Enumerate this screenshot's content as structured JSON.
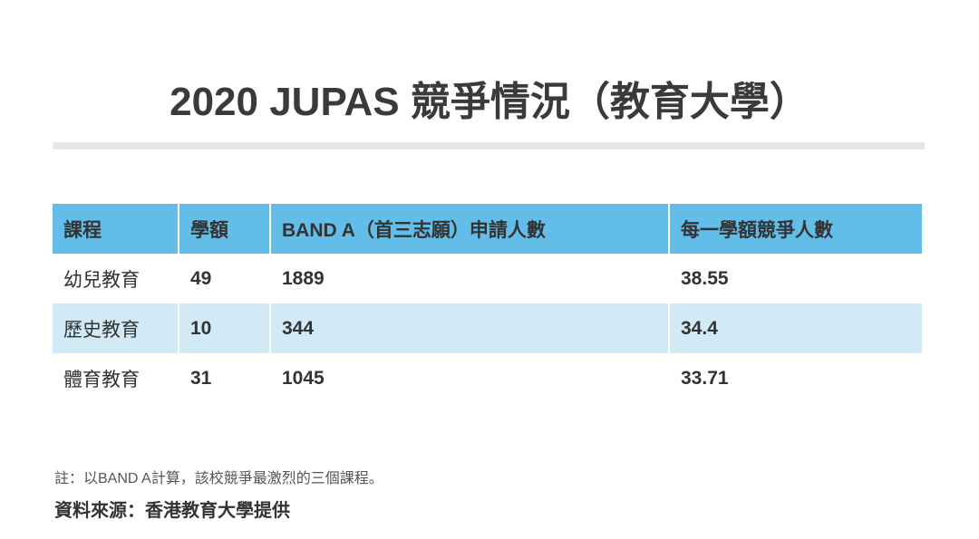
{
  "title": "2020 JUPAS 競爭情況（教育大學）",
  "table": {
    "header": [
      "課程",
      "學額",
      "BAND A（首三志願）申請人數",
      "每一學額競爭人數"
    ],
    "rows": [
      [
        "幼兒教育",
        "49",
        "1889",
        "38.55"
      ],
      [
        "歷史教育",
        "10",
        "344",
        "34.4"
      ],
      [
        "體育教育",
        "31",
        "1045",
        "33.71"
      ]
    ]
  },
  "note": "註：以BAND A計算，該校競爭最激烈的三個課程。",
  "source": "資料來源：香港教育大學提供"
}
